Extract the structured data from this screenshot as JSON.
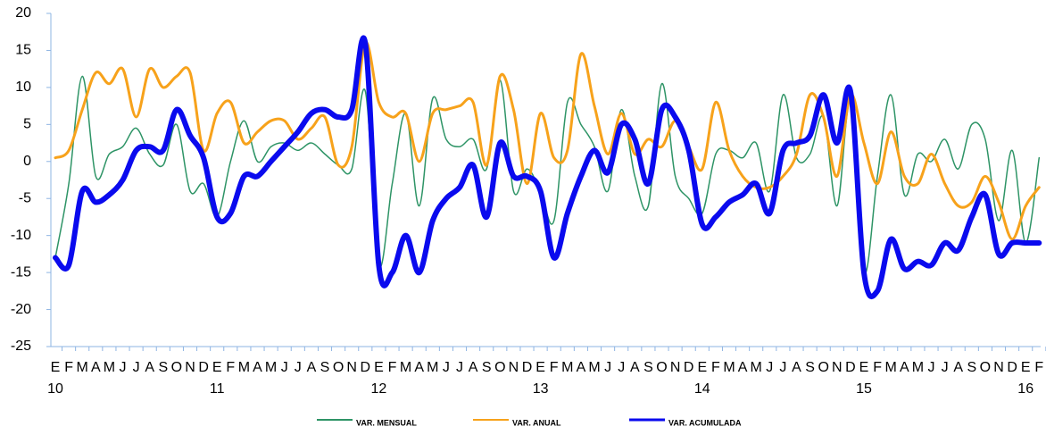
{
  "chart_data": {
    "type": "line",
    "categories": [
      "E",
      "F",
      "M",
      "A",
      "M",
      "J",
      "J",
      "A",
      "S",
      "O",
      "N",
      "D",
      "E",
      "F",
      "M",
      "A",
      "M",
      "J",
      "J",
      "A",
      "S",
      "O",
      "N",
      "D",
      "E",
      "F",
      "M",
      "A",
      "M",
      "J",
      "J",
      "A",
      "S",
      "O",
      "N",
      "D",
      "E",
      "F",
      "M",
      "A",
      "M",
      "J",
      "J",
      "A",
      "S",
      "O",
      "N",
      "D",
      "E",
      "F",
      "M",
      "A",
      "M",
      "J",
      "J",
      "A",
      "S",
      "O",
      "N",
      "D",
      "E",
      "F",
      "M",
      "A",
      "M",
      "J",
      "J",
      "A",
      "S",
      "O",
      "N",
      "D",
      "E",
      "F"
    ],
    "category_years": [
      "10",
      null,
      null,
      null,
      null,
      null,
      null,
      null,
      null,
      null,
      null,
      null,
      "11",
      null,
      null,
      null,
      null,
      null,
      null,
      null,
      null,
      null,
      null,
      null,
      "12",
      null,
      null,
      null,
      null,
      null,
      null,
      null,
      null,
      null,
      null,
      null,
      "13",
      null,
      null,
      null,
      null,
      null,
      null,
      null,
      null,
      null,
      null,
      null,
      "14",
      null,
      null,
      null,
      null,
      null,
      null,
      null,
      null,
      null,
      null,
      null,
      "15",
      null,
      null,
      null,
      null,
      null,
      null,
      null,
      null,
      null,
      null,
      null,
      "16",
      null
    ],
    "series": [
      {
        "name": "VAR. MENSUAL",
        "color": "#2e9466",
        "values": [
          -13,
          -3,
          11.5,
          -2,
          1,
          2,
          4.5,
          1,
          -0.5,
          5,
          -4,
          -3,
          -7.5,
          0,
          5.5,
          0,
          2,
          2.5,
          1.5,
          2.5,
          1,
          -0.5,
          -1,
          9.5,
          -14,
          -3,
          6.5,
          -6,
          8.5,
          3,
          2,
          3,
          -1,
          11,
          -4,
          -1,
          -4,
          -8,
          8,
          5,
          2,
          -4,
          7,
          -2,
          -6,
          10.5,
          -2,
          -5,
          -7,
          1,
          1.5,
          0.5,
          2.5,
          -4,
          9,
          0.5,
          1,
          6,
          -6,
          8,
          -15,
          -2,
          9,
          -4.5,
          1,
          0,
          3,
          -1,
          5,
          3,
          -8,
          1.5,
          -11,
          0.5
        ]
      },
      {
        "name": "VAR. ANUAL",
        "color": "#f7a21b",
        "values": [
          0.5,
          1.5,
          7,
          12,
          10.5,
          12.5,
          6,
          12.5,
          10,
          11.5,
          12,
          1.5,
          6.5,
          8,
          2.5,
          4,
          5.5,
          5.5,
          3,
          4.5,
          6,
          -0.5,
          2,
          16,
          8,
          6,
          6.5,
          0,
          6.5,
          7,
          7.5,
          8,
          -0.5,
          11.5,
          7,
          -3,
          6.5,
          0.5,
          1.5,
          14.5,
          7.5,
          1,
          6.5,
          1,
          3,
          2,
          5.5,
          2,
          -1,
          8,
          1.5,
          -2,
          -3.5,
          -3.5,
          -2,
          1,
          9,
          6,
          -2,
          9,
          2.5,
          -3,
          4,
          -2,
          -3,
          1,
          -3,
          -6,
          -5.5,
          -2,
          -5.5,
          -10.5,
          -6,
          -3.5
        ]
      },
      {
        "name": "VAR. ACUMULADA",
        "color": "#0a0aee",
        "values": [
          -13,
          -14,
          -4,
          -5.5,
          -4.5,
          -2.5,
          1.5,
          2,
          1.5,
          7,
          3.5,
          0.5,
          -7.5,
          -7,
          -2,
          -2,
          0,
          2,
          4,
          6.5,
          7,
          6,
          7,
          16,
          -14,
          -15,
          -10,
          -15,
          -8,
          -5,
          -3.5,
          -0.5,
          -7.5,
          2.5,
          -2,
          -2,
          -4,
          -13,
          -7,
          -2,
          1.5,
          -1.5,
          5,
          3,
          -3,
          7,
          6,
          1.5,
          -8.5,
          -7.5,
          -5.5,
          -4.5,
          -3,
          -7,
          1.5,
          2.5,
          3.5,
          9,
          2.5,
          9.5,
          -15,
          -17.5,
          -10.5,
          -14.5,
          -13.5,
          -14,
          -11,
          -12,
          -7.5,
          -4.5,
          -12.5,
          -11,
          -11,
          -11
        ]
      }
    ],
    "ylim": [
      -25,
      20
    ],
    "yticks": [
      -25,
      -20,
      -15,
      -10,
      -5,
      0,
      5,
      10,
      15,
      20
    ],
    "grid": false
  }
}
